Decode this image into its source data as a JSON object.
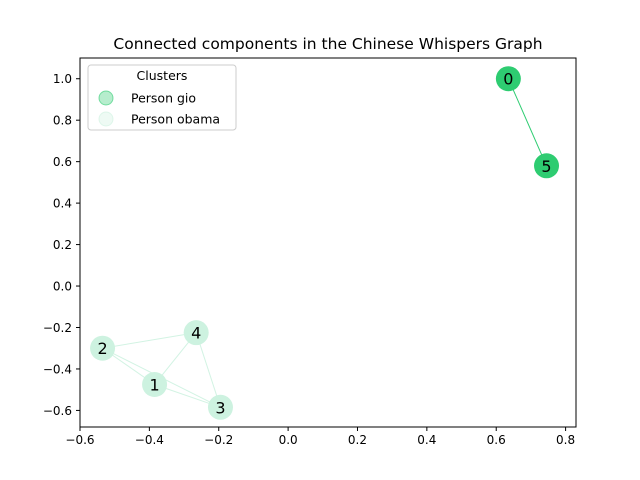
{
  "chart_data": {
    "type": "scatter",
    "title": "Connected components in the Chinese Whispers Graph",
    "xlabel": "",
    "ylabel": "",
    "xlim": [
      -0.6,
      0.83
    ],
    "ylim": [
      -0.68,
      1.1
    ],
    "x_ticks": [
      -0.6,
      -0.4,
      -0.2,
      0.0,
      0.2,
      0.4,
      0.6,
      0.8
    ],
    "x_tick_labels": [
      "−0.6",
      "−0.4",
      "−0.2",
      "0.0",
      "0.2",
      "0.4",
      "0.6",
      "0.8"
    ],
    "y_ticks": [
      -0.6,
      -0.4,
      -0.2,
      0.0,
      0.2,
      0.4,
      0.6,
      0.8,
      1.0
    ],
    "y_tick_labels": [
      "−0.6",
      "−0.4",
      "−0.2",
      "0.0",
      "0.2",
      "0.4",
      "0.6",
      "0.8",
      "1.0"
    ],
    "grid": false,
    "legend": {
      "title": "Clusters",
      "position": "top-left",
      "entries": [
        {
          "name": "Person gio",
          "color": "#2ecc71",
          "opacity": 0.35
        },
        {
          "name": "Person obama",
          "color": "#cdf2e0",
          "opacity": 0.35
        }
      ]
    },
    "series": [
      {
        "name": "Person gio",
        "color": "#2ecc71",
        "nodes": [
          {
            "label": "0",
            "x": 0.635,
            "y": 1.0
          },
          {
            "label": "5",
            "x": 0.745,
            "y": 0.58
          }
        ],
        "edges": [
          [
            "0",
            "5"
          ]
        ]
      },
      {
        "name": "Person obama",
        "color": "#cdf2e0",
        "nodes": [
          {
            "label": "1",
            "x": -0.385,
            "y": -0.475
          },
          {
            "label": "2",
            "x": -0.535,
            "y": -0.3
          },
          {
            "label": "3",
            "x": -0.195,
            "y": -0.585
          },
          {
            "label": "4",
            "x": -0.265,
            "y": -0.225
          }
        ],
        "edges": [
          [
            "1",
            "2"
          ],
          [
            "1",
            "3"
          ],
          [
            "1",
            "4"
          ],
          [
            "2",
            "3"
          ],
          [
            "2",
            "4"
          ],
          [
            "3",
            "4"
          ]
        ]
      }
    ]
  }
}
